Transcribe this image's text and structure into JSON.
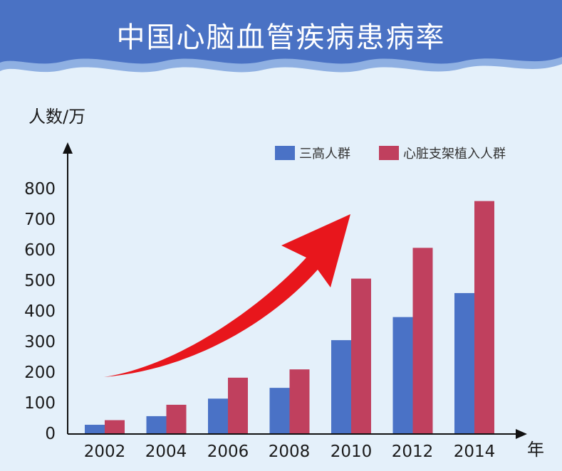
{
  "header": {
    "title": "中国心脑血管疾病患病率"
  },
  "colors": {
    "banner": "#4a72c4",
    "banner_wave_light": "#8fb0e2",
    "background": "#e4f0fa",
    "series_1": "#4a72c6",
    "series_2": "#c0405e",
    "arrow": "#e8161c",
    "axis": "#111111"
  },
  "chart_data": {
    "type": "bar",
    "title": "中国心脑血管疾病患病率",
    "ylabel": "人数/万",
    "xlabel": "年",
    "categories": [
      "2002",
      "2004",
      "2006",
      "2008",
      "2010",
      "2012",
      "2014"
    ],
    "yticks": [
      0,
      100,
      200,
      300,
      400,
      500,
      600,
      700,
      800
    ],
    "ylim": [
      0,
      800
    ],
    "grid": false,
    "legend_position": "top-right",
    "series": [
      {
        "name": "三高人群",
        "values": [
          30,
          58,
          115,
          150,
          305,
          380,
          458
        ]
      },
      {
        "name": "心脏支架植入人群",
        "values": [
          45,
          95,
          183,
          210,
          505,
          605,
          757
        ]
      }
    ],
    "annotations": [
      {
        "type": "upward-trend-arrow"
      }
    ]
  }
}
